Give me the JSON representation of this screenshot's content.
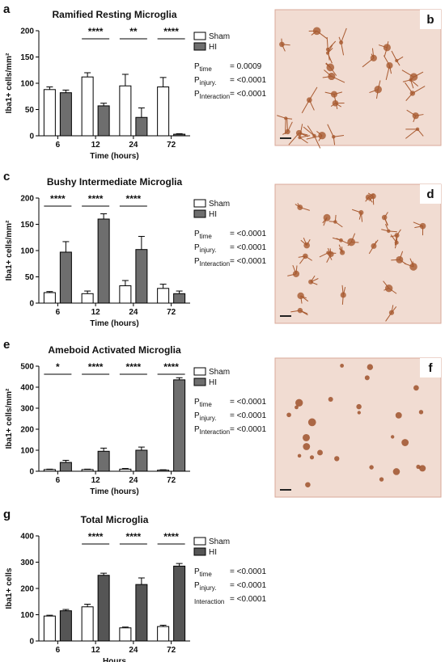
{
  "chart_data": [
    {
      "type": "bar",
      "panel": "a",
      "title": "Ramified Resting Microglia",
      "y_label": "Iba1+ cells/mm²",
      "x_label": "Time (hours)",
      "categories": [
        "6",
        "12",
        "24",
        "72"
      ],
      "ylim": [
        0,
        200
      ],
      "yticks": [
        0,
        50,
        100,
        150,
        200
      ],
      "series": [
        {
          "name": "Sham",
          "color": "#ffffff",
          "values": [
            88,
            112,
            95,
            93
          ],
          "errors": [
            5,
            8,
            22,
            18
          ]
        },
        {
          "name": "HI",
          "color": "#6e6e6e",
          "values": [
            82,
            57,
            35,
            3
          ],
          "errors": [
            5,
            5,
            18,
            1
          ]
        }
      ],
      "significance": [
        null,
        "****",
        "**",
        "****"
      ],
      "stats": [
        {
          "label": "P",
          "sub": "time",
          "value": "= 0.0009"
        },
        {
          "label": "P",
          "sub": "injury.",
          "value": "= <0.0001"
        },
        {
          "label": "P",
          "sub": "Interaction",
          "value": "= <0.0001"
        }
      ]
    },
    {
      "type": "bar",
      "panel": "c",
      "title": "Bushy Intermediate Microglia",
      "y_label": "Iba1+ cells/mm²",
      "x_label": "Time (hours)",
      "categories": [
        "6",
        "12",
        "24",
        "72"
      ],
      "ylim": [
        0,
        200
      ],
      "yticks": [
        0,
        50,
        100,
        150,
        200
      ],
      "series": [
        {
          "name": "Sham",
          "color": "#ffffff",
          "values": [
            20,
            18,
            33,
            28
          ],
          "errors": [
            2,
            5,
            10,
            8
          ]
        },
        {
          "name": "HI",
          "color": "#6e6e6e",
          "values": [
            97,
            160,
            102,
            18
          ],
          "errors": [
            20,
            10,
            25,
            5
          ]
        }
      ],
      "significance": [
        "****",
        "****",
        "****",
        null
      ],
      "stats": [
        {
          "label": "P",
          "sub": "time",
          "value": "= <0.0001"
        },
        {
          "label": "P",
          "sub": "injury.",
          "value": "= <0.0001"
        },
        {
          "label": "P",
          "sub": "Interaction",
          "value": "= <0.0001"
        }
      ]
    },
    {
      "type": "bar",
      "panel": "e",
      "title": "Ameboid Activated Microglia",
      "y_label": "Iba1+ cells/mm²",
      "x_label": "Time (hours)",
      "categories": [
        "6",
        "12",
        "24",
        "72"
      ],
      "ylim": [
        0,
        500
      ],
      "yticks": [
        0,
        100,
        200,
        300,
        400,
        500
      ],
      "series": [
        {
          "name": "Sham",
          "color": "#ffffff",
          "values": [
            8,
            8,
            10,
            5
          ],
          "errors": [
            2,
            2,
            3,
            2
          ]
        },
        {
          "name": "HI",
          "color": "#6e6e6e",
          "values": [
            42,
            95,
            100,
            435
          ],
          "errors": [
            10,
            15,
            15,
            10
          ]
        }
      ],
      "significance": [
        "*",
        "****",
        "****",
        "****"
      ],
      "stats": [
        {
          "label": "P",
          "sub": "time",
          "value": "= <0.0001"
        },
        {
          "label": "P",
          "sub": "injury.",
          "value": "= <0.0001"
        },
        {
          "label": "P",
          "sub": "Interaction",
          "value": "= <0.0001"
        }
      ]
    },
    {
      "type": "bar",
      "panel": "g",
      "title": "Total Microglia",
      "y_label": "Iba1+ cells",
      "x_label": "Hours",
      "categories": [
        "6",
        "12",
        "24",
        "72"
      ],
      "ylim": [
        0,
        400
      ],
      "yticks": [
        0,
        100,
        200,
        300,
        400
      ],
      "series": [
        {
          "name": "Sham",
          "color": "#ffffff",
          "values": [
            95,
            130,
            50,
            55
          ],
          "errors": [
            3,
            10,
            3,
            5
          ]
        },
        {
          "name": "HI",
          "color": "#555555",
          "values": [
            115,
            250,
            215,
            285
          ],
          "errors": [
            5,
            8,
            25,
            10
          ]
        }
      ],
      "significance": [
        null,
        "****",
        "****",
        "****"
      ],
      "stats": [
        {
          "label": "P",
          "sub": "time",
          "value": "= <0.0001"
        },
        {
          "label": "P",
          "sub": "injury.",
          "value": "= <0.0001"
        },
        {
          "sub": "Interaction",
          "value": "= <0.0001"
        }
      ]
    }
  ],
  "images": [
    {
      "panel": "b"
    },
    {
      "panel": "d"
    },
    {
      "panel": "f"
    }
  ]
}
